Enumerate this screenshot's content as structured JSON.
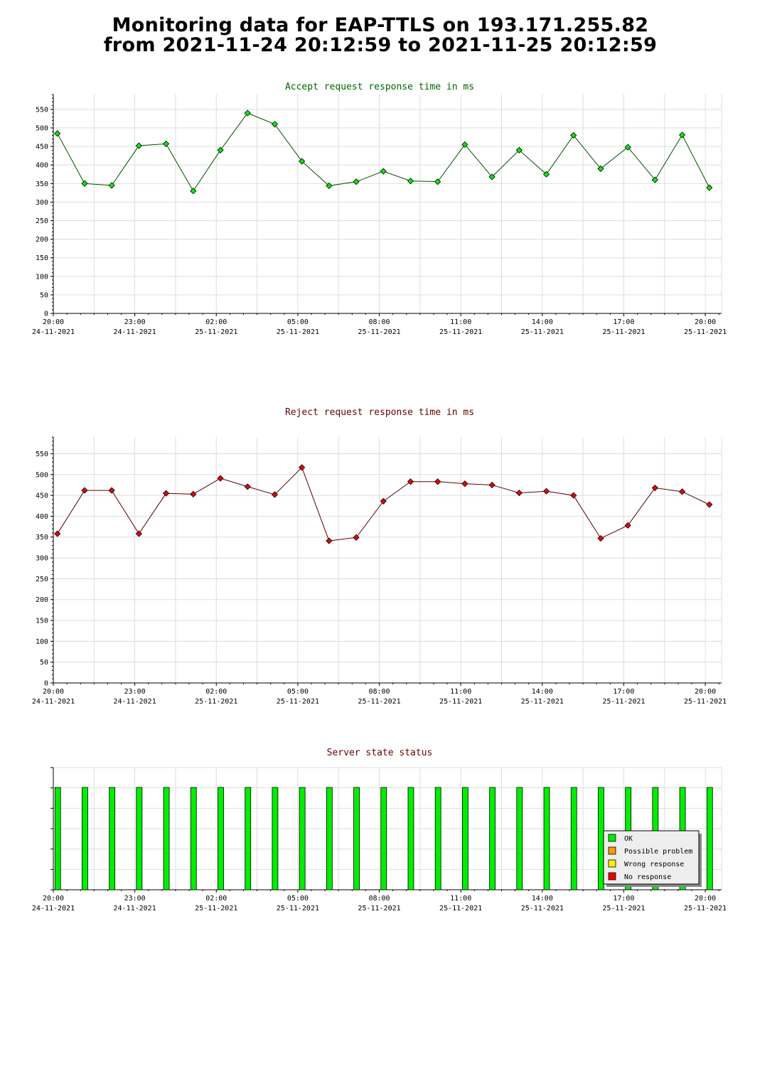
{
  "page": {
    "title_line1": "Monitoring data for EAP-TTLS on 193.171.255.82",
    "title_line2": "from 2021-11-24 20:12:59 to 2021-11-25 20:12:59"
  },
  "colors": {
    "accept_title": "#006400",
    "reject_title": "#6b0000",
    "status_title": "#6b0000",
    "accept_point": "#00ee00",
    "reject_point": "#ee0000",
    "ok": "#00ee00",
    "possible_problem": "#ff9900",
    "wrong_response": "#ffee00",
    "no_response": "#ee0000",
    "grid": "#dddddd"
  },
  "x_ticks": [
    {
      "time": "20:00",
      "date": "24-11-2021"
    },
    {
      "time": "23:00",
      "date": "24-11-2021"
    },
    {
      "time": "02:00",
      "date": "25-11-2021"
    },
    {
      "time": "05:00",
      "date": "25-11-2021"
    },
    {
      "time": "08:00",
      "date": "25-11-2021"
    },
    {
      "time": "11:00",
      "date": "25-11-2021"
    },
    {
      "time": "14:00",
      "date": "25-11-2021"
    },
    {
      "time": "17:00",
      "date": "25-11-2021"
    },
    {
      "time": "20:00",
      "date": "25-11-2021"
    }
  ],
  "chart_data": [
    {
      "type": "line",
      "title": "Accept request response time in ms",
      "ylim": [
        0,
        590
      ],
      "y_ticks": [
        0,
        50,
        100,
        150,
        200,
        250,
        300,
        350,
        400,
        450,
        500,
        550
      ],
      "x_hours": [
        20.15,
        21.15,
        22.15,
        23.15,
        24.15,
        25.15,
        26.15,
        27.15,
        28.15,
        29.15,
        30.15,
        31.15,
        32.15,
        33.15,
        34.15,
        35.15,
        36.15,
        37.15,
        38.15,
        39.15,
        40.15,
        41.15,
        42.15,
        43.15,
        44.15
      ],
      "values": [
        485,
        350,
        345,
        452,
        457,
        330,
        440,
        540,
        510,
        410,
        344,
        355,
        383,
        357,
        355,
        455,
        368,
        440,
        375,
        480,
        390,
        448,
        360,
        481,
        339
      ],
      "grid": true
    },
    {
      "type": "line",
      "title": "Reject request response time in ms",
      "ylim": [
        0,
        590
      ],
      "y_ticks": [
        0,
        50,
        100,
        150,
        200,
        250,
        300,
        350,
        400,
        450,
        500,
        550
      ],
      "x_hours": [
        20.15,
        21.15,
        22.15,
        23.15,
        24.15,
        25.15,
        26.15,
        27.15,
        28.15,
        29.15,
        30.15,
        31.15,
        32.15,
        33.15,
        34.15,
        35.15,
        36.15,
        37.15,
        38.15,
        39.15,
        40.15,
        41.15,
        42.15,
        43.15,
        44.15
      ],
      "values": [
        358,
        462,
        462,
        358,
        455,
        453,
        491,
        471,
        452,
        517,
        341,
        349,
        436,
        483,
        483,
        478,
        475,
        456,
        460,
        450,
        347,
        378,
        468,
        459,
        428
      ],
      "grid": true
    },
    {
      "type": "bar",
      "title": "Server state status",
      "x_hours": [
        20.15,
        21.15,
        22.15,
        23.15,
        24.15,
        25.15,
        26.15,
        27.15,
        28.15,
        29.15,
        30.15,
        31.15,
        32.15,
        33.15,
        34.15,
        35.15,
        36.15,
        37.15,
        38.15,
        39.15,
        40.15,
        41.15,
        42.15,
        43.15,
        44.15
      ],
      "states": [
        "OK",
        "OK",
        "OK",
        "OK",
        "OK",
        "OK",
        "OK",
        "OK",
        "OK",
        "OK",
        "OK",
        "OK",
        "OK",
        "OK",
        "OK",
        "OK",
        "OK",
        "OK",
        "OK",
        "OK",
        "OK",
        "OK",
        "OK",
        "OK",
        "OK"
      ],
      "legend": [
        "OK",
        "Possible problem",
        "Wrong response",
        "No response"
      ],
      "legend_position": "bottom-right",
      "grid": true
    }
  ]
}
